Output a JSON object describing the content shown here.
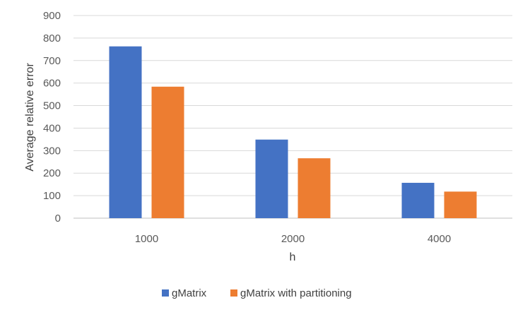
{
  "chart_data": {
    "type": "bar",
    "title": "",
    "xlabel": "h",
    "ylabel": "Average relative error",
    "categories": [
      "1000",
      "2000",
      "4000"
    ],
    "series": [
      {
        "name": "gMatrix",
        "values": [
          763,
          349,
          157
        ],
        "color": "#4472C4"
      },
      {
        "name": "gMatrix with partitioning",
        "values": [
          584,
          266,
          118
        ],
        "color": "#ED7D31"
      }
    ],
    "ylim": [
      0,
      900
    ],
    "yticks": [
      "0",
      "100",
      "200",
      "300",
      "400",
      "500",
      "600",
      "700",
      "800",
      "900"
    ],
    "grid": true,
    "legend_position": "bottom"
  }
}
